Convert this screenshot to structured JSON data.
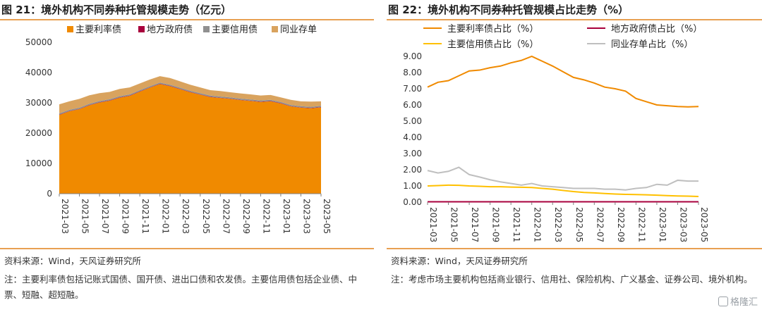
{
  "left": {
    "title": "图 21：境外机构不同券种托管规模走势（亿元）",
    "source": "资料来源：Wind，天风证券研究所",
    "note": "注：主要利率债包括记账式国债、国开债、进出口债和农发债。主要信用债包括企业债、中票、短融、超短融。"
  },
  "right": {
    "title": "图 22：境外机构不同券种托管规模占比走势（%）",
    "source": "资料来源：Wind，天风证券研究所",
    "note": "注：考虑市场主要机构包括商业银行、信用社、保险机构、广义基金、证券公司、境外机构。"
  },
  "watermark": "格隆汇",
  "colors": {
    "orange": "#f08a00",
    "crimson": "#a8003c",
    "gray": "#909090",
    "tan": "#d9a35e",
    "yellow": "#ffc000",
    "lightgray": "#bfbfbf",
    "rule": "#e8a052"
  },
  "chart_data": [
    {
      "type": "area",
      "stacked": true,
      "title": "图 21：境外机构不同券种托管规模走势（亿元）",
      "x_tick_labels": [
        "2021-03",
        "2021-05",
        "2021-07",
        "2021-09",
        "2021-11",
        "2022-01",
        "2022-03",
        "2022-05",
        "2022-07",
        "2022-09",
        "2022-11",
        "2023-01",
        "2023-03",
        "2023-05"
      ],
      "x": [
        "2021-03",
        "2021-04",
        "2021-05",
        "2021-06",
        "2021-07",
        "2021-08",
        "2021-09",
        "2021-10",
        "2021-11",
        "2021-12",
        "2022-01",
        "2022-02",
        "2022-03",
        "2022-04",
        "2022-05",
        "2022-06",
        "2022-07",
        "2022-08",
        "2022-09",
        "2022-10",
        "2022-11",
        "2022-12",
        "2023-01",
        "2023-02",
        "2023-03",
        "2023-04",
        "2023-05"
      ],
      "ylim": [
        0,
        50000
      ],
      "yticks": [
        0,
        10000,
        20000,
        30000,
        40000,
        50000
      ],
      "legend": "top",
      "series": [
        {
          "name": "主要利率债",
          "color": "#f08a00",
          "values": [
            26000,
            27200,
            27900,
            29200,
            30100,
            30700,
            31700,
            32300,
            33700,
            35000,
            36200,
            35500,
            34500,
            33500,
            32700,
            31900,
            31600,
            31300,
            30900,
            30600,
            30300,
            30500,
            29800,
            28800,
            28400,
            28200,
            28500
          ]
        },
        {
          "name": "地方政府债",
          "color": "#a8003c",
          "values": [
            100,
            100,
            100,
            100,
            100,
            100,
            100,
            100,
            100,
            100,
            100,
            100,
            100,
            100,
            100,
            100,
            100,
            100,
            100,
            100,
            100,
            100,
            100,
            100,
            100,
            100,
            100
          ]
        },
        {
          "name": "主要信用债",
          "color": "#909090",
          "values": [
            400,
            400,
            400,
            400,
            400,
            400,
            400,
            400,
            400,
            400,
            400,
            400,
            400,
            400,
            400,
            400,
            400,
            400,
            400,
            400,
            400,
            400,
            400,
            400,
            400,
            400,
            400
          ]
        },
        {
          "name": "同业存单",
          "color": "#d9a35e",
          "values": [
            3000,
            2800,
            2900,
            2800,
            2600,
            2400,
            2400,
            2300,
            2200,
            2200,
            2100,
            2200,
            2100,
            2000,
            1900,
            1800,
            1800,
            1700,
            1700,
            1700,
            1600,
            1600,
            1500,
            1700,
            1600,
            1700,
            1500
          ]
        }
      ]
    },
    {
      "type": "line",
      "title": "图 22：境外机构不同券种托管规模占比走势（%）",
      "x_tick_labels": [
        "2021-03",
        "2021-05",
        "2021-07",
        "2021-09",
        "2021-11",
        "2022-01",
        "2022-03",
        "2022-05",
        "2022-07",
        "2022-09",
        "2022-11",
        "2023-01",
        "2023-03",
        "2023-05"
      ],
      "x": [
        "2021-03",
        "2021-04",
        "2021-05",
        "2021-06",
        "2021-07",
        "2021-08",
        "2021-09",
        "2021-10",
        "2021-11",
        "2021-12",
        "2022-01",
        "2022-02",
        "2022-03",
        "2022-04",
        "2022-05",
        "2022-06",
        "2022-07",
        "2022-08",
        "2022-09",
        "2022-10",
        "2022-11",
        "2022-12",
        "2023-01",
        "2023-02",
        "2023-03",
        "2023-04",
        "2023-05"
      ],
      "ylim": [
        0,
        9
      ],
      "yticks": [
        "0.00",
        "1.00",
        "2.00",
        "3.00",
        "4.00",
        "5.00",
        "6.00",
        "7.00",
        "8.00",
        "9.00"
      ],
      "legend": "top",
      "series": [
        {
          "name": "主要利率债占比（%）",
          "color": "#f08a00",
          "values": [
            7.1,
            7.4,
            7.5,
            7.8,
            8.1,
            8.15,
            8.3,
            8.4,
            8.6,
            8.75,
            9.0,
            8.7,
            8.4,
            8.05,
            7.7,
            7.55,
            7.35,
            7.1,
            7.0,
            6.85,
            6.4,
            6.2,
            6.0,
            5.95,
            5.9,
            5.88,
            5.9
          ]
        },
        {
          "name": "地方政府债占比（%）",
          "color": "#a8003c",
          "values": [
            0.02,
            0.02,
            0.02,
            0.02,
            0.02,
            0.02,
            0.02,
            0.02,
            0.02,
            0.02,
            0.02,
            0.02,
            0.02,
            0.02,
            0.02,
            0.02,
            0.02,
            0.02,
            0.02,
            0.02,
            0.02,
            0.02,
            0.02,
            0.02,
            0.02,
            0.02,
            0.02
          ]
        },
        {
          "name": "主要信用债占比（%）",
          "color": "#ffc000",
          "values": [
            1.0,
            1.02,
            1.05,
            1.04,
            1.0,
            0.98,
            0.95,
            0.95,
            0.93,
            0.92,
            0.9,
            0.85,
            0.8,
            0.72,
            0.65,
            0.6,
            0.57,
            0.53,
            0.5,
            0.48,
            0.47,
            0.45,
            0.43,
            0.4,
            0.38,
            0.37,
            0.35
          ]
        },
        {
          "name": "同业存单占比（%）",
          "color": "#bfbfbf",
          "values": [
            1.95,
            1.8,
            1.9,
            2.15,
            1.7,
            1.55,
            1.38,
            1.25,
            1.15,
            1.05,
            1.15,
            1.0,
            0.95,
            0.9,
            0.85,
            0.85,
            0.85,
            0.8,
            0.8,
            0.75,
            0.85,
            0.9,
            1.1,
            1.05,
            1.35,
            1.3,
            1.3
          ]
        }
      ]
    }
  ]
}
